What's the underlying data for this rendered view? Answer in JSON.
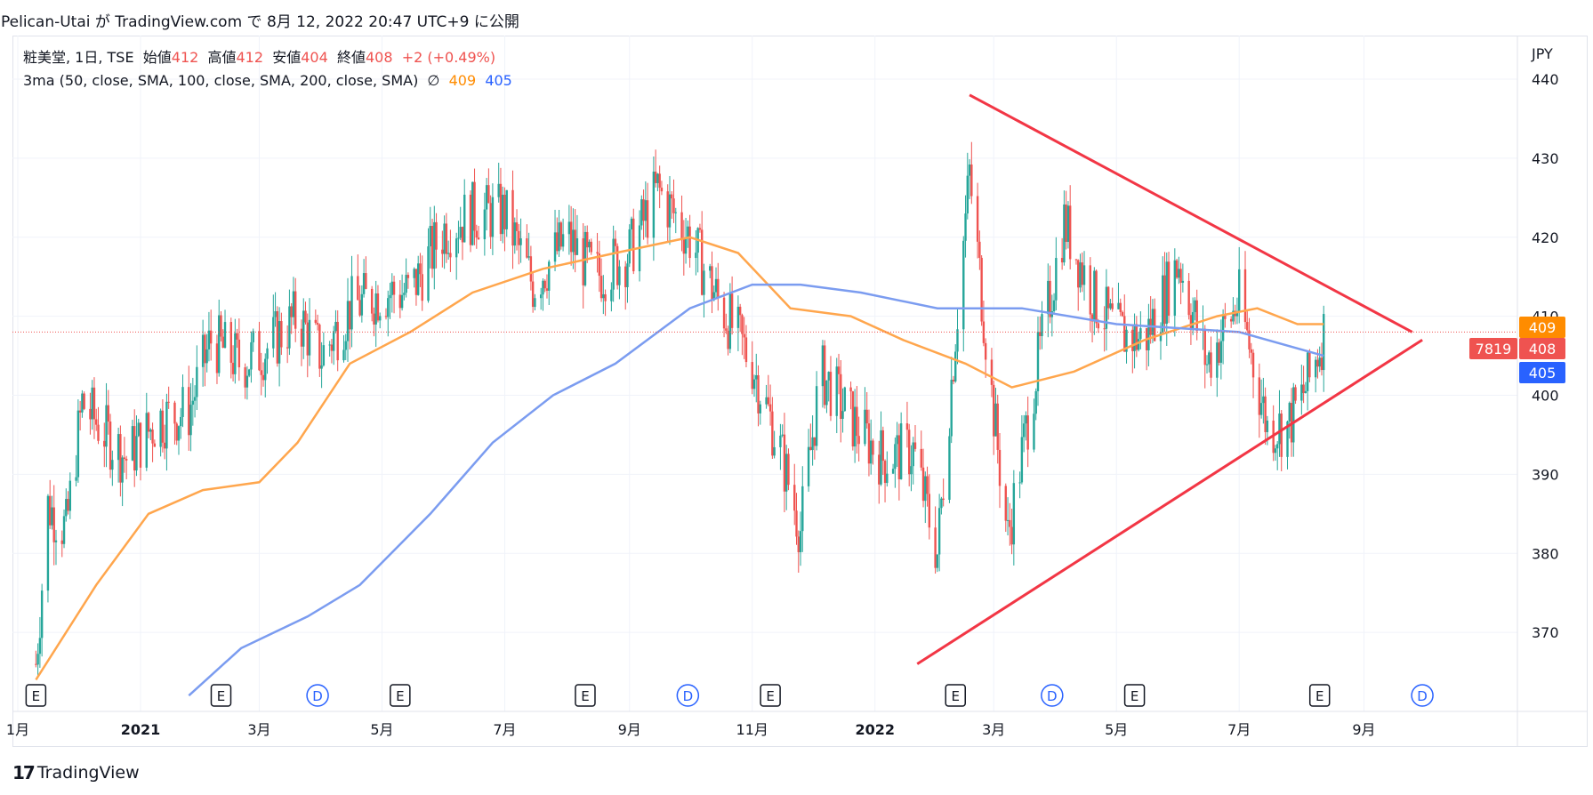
{
  "header": {
    "published_by": "Pelican-Utai が TradingView.com で 8月 12, 2022 20:47 UTC+9 に公開"
  },
  "legend": {
    "symbol": "粧美堂, 1日, TSE",
    "open_label": "始値",
    "open": "412",
    "high_label": "高値",
    "high": "412",
    "low_label": "安値",
    "low": "404",
    "close_label": "終値",
    "close": "408",
    "change": "+2 (+0.49%)",
    "indicator": "3ma (50, close, SMA, 100, close, SMA, 200, close, SMA)",
    "hidden_glyph": "∅",
    "ma_value_1": "409",
    "ma_value_2": "405"
  },
  "currency": "JPY",
  "footer": {
    "brand": "TradingView",
    "logo": "17"
  },
  "colors": {
    "up": "#26a69a",
    "down": "#ef5350",
    "ma50": "#ffa64d",
    "ma100": "#7b9cf0",
    "trendline": "#f23645",
    "grid": "#f0f3fa",
    "text": "#131722"
  },
  "chart_data": {
    "type": "candlestick",
    "ylim": [
      362,
      444
    ],
    "yticks": [
      370,
      380,
      390,
      400,
      410,
      420,
      430,
      440
    ],
    "xticks": [
      {
        "label": "1月",
        "x": "2020-11-01",
        "bold": false
      },
      {
        "label": "2021",
        "x": "2021-01-01",
        "bold": true
      },
      {
        "label": "3月",
        "x": "2021-03-01",
        "bold": false
      },
      {
        "label": "5月",
        "x": "2021-05-01",
        "bold": false
      },
      {
        "label": "7月",
        "x": "2021-07-01",
        "bold": false
      },
      {
        "label": "9月",
        "x": "2021-09-01",
        "bold": false
      },
      {
        "label": "11月",
        "x": "2021-11-01",
        "bold": false
      },
      {
        "label": "2022",
        "x": "2022-01-01",
        "bold": true
      },
      {
        "label": "3月",
        "x": "2022-03-01",
        "bold": false
      },
      {
        "label": "5月",
        "x": "2022-05-01",
        "bold": false
      },
      {
        "label": "7月",
        "x": "2022-07-01",
        "bold": false
      },
      {
        "label": "9月",
        "x": "2022-09-01",
        "bold": false
      }
    ],
    "close_series": [
      {
        "x": "2020-11-10",
        "y": 366
      },
      {
        "x": "2020-11-16",
        "y": 386
      },
      {
        "x": "2020-11-25",
        "y": 383
      },
      {
        "x": "2020-12-03",
        "y": 399
      },
      {
        "x": "2020-12-15",
        "y": 395
      },
      {
        "x": "2020-12-25",
        "y": 392
      },
      {
        "x": "2021-01-10",
        "y": 397
      },
      {
        "x": "2021-01-25",
        "y": 398
      },
      {
        "x": "2021-02-05",
        "y": 407
      },
      {
        "x": "2021-02-20",
        "y": 404
      },
      {
        "x": "2021-03-05",
        "y": 406
      },
      {
        "x": "2021-03-20",
        "y": 410
      },
      {
        "x": "2021-04-01",
        "y": 405
      },
      {
        "x": "2021-04-15",
        "y": 411
      },
      {
        "x": "2021-05-01",
        "y": 413
      },
      {
        "x": "2021-05-15",
        "y": 413
      },
      {
        "x": "2021-06-01",
        "y": 421
      },
      {
        "x": "2021-06-15",
        "y": 423
      },
      {
        "x": "2021-07-01",
        "y": 423
      },
      {
        "x": "2021-07-15",
        "y": 414
      },
      {
        "x": "2021-08-01",
        "y": 420
      },
      {
        "x": "2021-08-15",
        "y": 415
      },
      {
        "x": "2021-09-01",
        "y": 418
      },
      {
        "x": "2021-09-15",
        "y": 426
      },
      {
        "x": "2021-10-01",
        "y": 420
      },
      {
        "x": "2021-10-15",
        "y": 412
      },
      {
        "x": "2021-11-01",
        "y": 404
      },
      {
        "x": "2021-11-15",
        "y": 393
      },
      {
        "x": "2021-11-25",
        "y": 383
      },
      {
        "x": "2021-12-05",
        "y": 403
      },
      {
        "x": "2021-12-20",
        "y": 397
      },
      {
        "x": "2022-01-05",
        "y": 392
      },
      {
        "x": "2022-01-20",
        "y": 393
      },
      {
        "x": "2022-02-01",
        "y": 380
      },
      {
        "x": "2022-02-10",
        "y": 408
      },
      {
        "x": "2022-02-17",
        "y": 428
      },
      {
        "x": "2022-02-28",
        "y": 400
      },
      {
        "x": "2022-03-08",
        "y": 382
      },
      {
        "x": "2022-03-20",
        "y": 400
      },
      {
        "x": "2022-04-05",
        "y": 422
      },
      {
        "x": "2022-04-20",
        "y": 412
      },
      {
        "x": "2022-05-01",
        "y": 408
      },
      {
        "x": "2022-05-15",
        "y": 407
      },
      {
        "x": "2022-06-01",
        "y": 417
      },
      {
        "x": "2022-06-15",
        "y": 404
      },
      {
        "x": "2022-07-01",
        "y": 412
      },
      {
        "x": "2022-07-15",
        "y": 396
      },
      {
        "x": "2022-07-25",
        "y": 396
      },
      {
        "x": "2022-08-05",
        "y": 402
      },
      {
        "x": "2022-08-12",
        "y": 408
      }
    ],
    "ma50": [
      {
        "x": "2020-11-10",
        "y": 364
      },
      {
        "x": "2020-12-10",
        "y": 376
      },
      {
        "x": "2021-01-05",
        "y": 385
      },
      {
        "x": "2021-02-01",
        "y": 388
      },
      {
        "x": "2021-03-01",
        "y": 389
      },
      {
        "x": "2021-03-20",
        "y": 394
      },
      {
        "x": "2021-04-15",
        "y": 404
      },
      {
        "x": "2021-05-15",
        "y": 408
      },
      {
        "x": "2021-06-15",
        "y": 413
      },
      {
        "x": "2021-07-20",
        "y": 416
      },
      {
        "x": "2021-08-25",
        "y": 418
      },
      {
        "x": "2021-10-01",
        "y": 420
      },
      {
        "x": "2021-10-25",
        "y": 418
      },
      {
        "x": "2021-11-20",
        "y": 411
      },
      {
        "x": "2021-12-20",
        "y": 410
      },
      {
        "x": "2022-01-15",
        "y": 407
      },
      {
        "x": "2022-02-15",
        "y": 404
      },
      {
        "x": "2022-03-10",
        "y": 401
      },
      {
        "x": "2022-04-10",
        "y": 403
      },
      {
        "x": "2022-05-15",
        "y": 407
      },
      {
        "x": "2022-06-20",
        "y": 410
      },
      {
        "x": "2022-07-10",
        "y": 411
      },
      {
        "x": "2022-07-30",
        "y": 409
      },
      {
        "x": "2022-08-12",
        "y": 409
      }
    ],
    "ma100": [
      {
        "x": "2021-01-25",
        "y": 362
      },
      {
        "x": "2021-02-20",
        "y": 368
      },
      {
        "x": "2021-03-25",
        "y": 372
      },
      {
        "x": "2021-04-20",
        "y": 376
      },
      {
        "x": "2021-05-25",
        "y": 385
      },
      {
        "x": "2021-06-25",
        "y": 394
      },
      {
        "x": "2021-07-25",
        "y": 400
      },
      {
        "x": "2021-08-25",
        "y": 404
      },
      {
        "x": "2021-10-01",
        "y": 411
      },
      {
        "x": "2021-11-01",
        "y": 414
      },
      {
        "x": "2021-11-25",
        "y": 414
      },
      {
        "x": "2021-12-25",
        "y": 413
      },
      {
        "x": "2022-02-01",
        "y": 411
      },
      {
        "x": "2022-03-15",
        "y": 411
      },
      {
        "x": "2022-05-01",
        "y": 409
      },
      {
        "x": "2022-07-01",
        "y": 408
      },
      {
        "x": "2022-08-12",
        "y": 405
      }
    ],
    "trendlines": [
      {
        "from": {
          "x": "2022-02-17",
          "y": 438
        },
        "to": {
          "x": "2022-09-25",
          "y": 408
        }
      },
      {
        "from": {
          "x": "2022-01-22",
          "y": 366
        },
        "to": {
          "x": "2022-09-30",
          "y": 407
        }
      }
    ],
    "events": [
      {
        "type": "E",
        "x": "2020-11-10"
      },
      {
        "type": "E",
        "x": "2021-02-10"
      },
      {
        "type": "D",
        "x": "2021-03-30"
      },
      {
        "type": "E",
        "x": "2021-05-10"
      },
      {
        "type": "E",
        "x": "2021-08-10"
      },
      {
        "type": "D",
        "x": "2021-09-30"
      },
      {
        "type": "E",
        "x": "2021-11-10"
      },
      {
        "type": "E",
        "x": "2022-02-10"
      },
      {
        "type": "D",
        "x": "2022-03-30"
      },
      {
        "type": "E",
        "x": "2022-05-10"
      },
      {
        "type": "E",
        "x": "2022-08-10"
      },
      {
        "type": "D",
        "x": "2022-09-30"
      }
    ],
    "price_labels": [
      {
        "text": "409",
        "value": 409,
        "color": "#ff8c00"
      },
      {
        "text": "408",
        "value": 408,
        "color": "#ef5350"
      },
      {
        "text": "405",
        "value": 405,
        "color": "#2962ff"
      }
    ],
    "volume_label": "7819",
    "last_price": 408
  }
}
